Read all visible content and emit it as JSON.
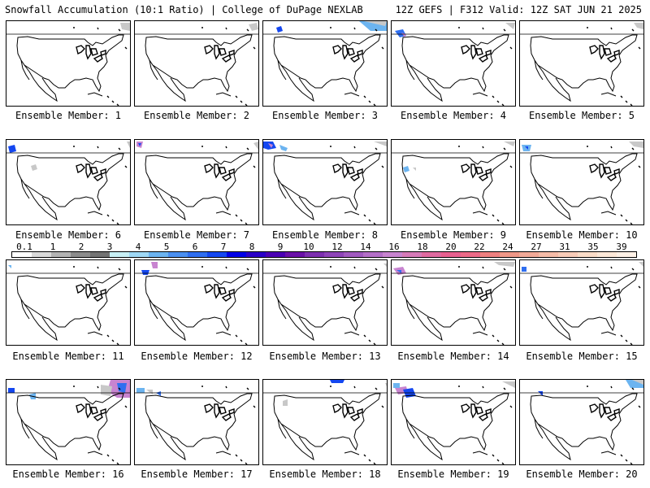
{
  "header": {
    "left": "Snowfall Accumulation (10:1 Ratio) | College of DuPage NEXLAB",
    "right": "12Z GEFS | F312 Valid: 12Z SAT JUN 21 2025"
  },
  "panels": [
    {
      "label": "Ensemble Member: 1"
    },
    {
      "label": "Ensemble Member: 2"
    },
    {
      "label": "Ensemble Member: 3"
    },
    {
      "label": "Ensemble Member: 4"
    },
    {
      "label": "Ensemble Member: 5"
    },
    {
      "label": "Ensemble Member: 6"
    },
    {
      "label": "Ensemble Member: 7"
    },
    {
      "label": "Ensemble Member: 8"
    },
    {
      "label": "Ensemble Member: 9"
    },
    {
      "label": "Ensemble Member: 10"
    },
    {
      "label": "Ensemble Member: 11"
    },
    {
      "label": "Ensemble Member: 12"
    },
    {
      "label": "Ensemble Member: 13"
    },
    {
      "label": "Ensemble Member: 14"
    },
    {
      "label": "Ensemble Member: 15"
    },
    {
      "label": "Ensemble Member: 16"
    },
    {
      "label": "Ensemble Member: 17"
    },
    {
      "label": "Ensemble Member: 18"
    },
    {
      "label": "Ensemble Member: 19"
    },
    {
      "label": "Ensemble Member: 20"
    }
  ],
  "colorbar": {
    "labels": [
      "0.1",
      "1",
      "2",
      "3",
      "4",
      "5",
      "6",
      "7",
      "8",
      "9",
      "10",
      "12",
      "14",
      "16",
      "18",
      "20",
      "22",
      "24",
      "27",
      "31",
      "35",
      "39"
    ],
    "colors": [
      "#ffffff",
      "#d9d9d9",
      "#b3b3b3",
      "#8c8c8c",
      "#737373",
      "#c8f0f5",
      "#9fd8f5",
      "#6cb4f0",
      "#4a8ff0",
      "#2f6ef0",
      "#1447f0",
      "#0000e6",
      "#2a00c8",
      "#4b00b4",
      "#6a10a8",
      "#7d2fb0",
      "#8e44b8",
      "#a15ac0",
      "#b46fc8",
      "#c884d0",
      "#d67ab8",
      "#e06aa0",
      "#e86090",
      "#ec6a88",
      "#ee8080",
      "#f09888",
      "#f2aa98",
      "#f5bca8",
      "#f8ccb8",
      "#fadcc8",
      "#fde8d8",
      "#fff1e6"
    ]
  }
}
